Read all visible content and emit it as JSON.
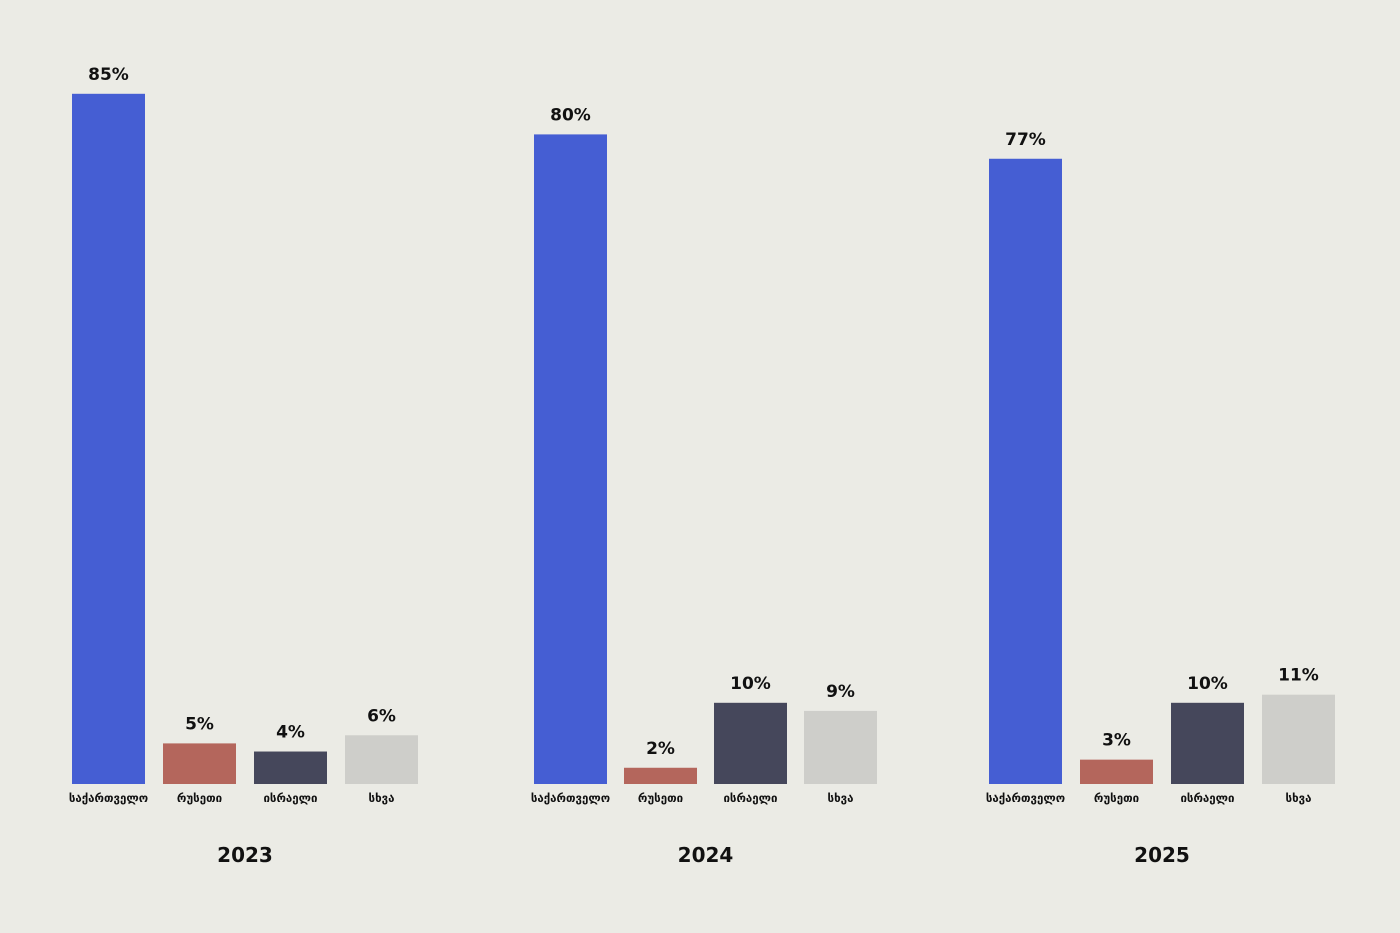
{
  "chart_data": [
    {
      "type": "bar",
      "title": "2023",
      "categories": [
        "საქართველო",
        "რუსეთი",
        "ისრაელი",
        "სხვა"
      ],
      "values": [
        85,
        5,
        4,
        6
      ],
      "value_labels": [
        "85%",
        "5%",
        "4%",
        "6%"
      ]
    },
    {
      "type": "bar",
      "title": "2024",
      "categories": [
        "საქართველო",
        "რუსეთი",
        "ისრაელი",
        "სხვა"
      ],
      "values": [
        80,
        2,
        10,
        9
      ],
      "value_labels": [
        "80%",
        "2%",
        "10%",
        "9%"
      ]
    },
    {
      "type": "bar",
      "title": "2025",
      "categories": [
        "საქართველო",
        "რუსეთი",
        "ისრაელი",
        "სხვა"
      ],
      "values": [
        77,
        3,
        10,
        11
      ],
      "value_labels": [
        "77%",
        "3%",
        "10%",
        "11%"
      ]
    }
  ],
  "colors": [
    "#455ed3",
    "#b4665c",
    "#45475b",
    "#cececa"
  ]
}
